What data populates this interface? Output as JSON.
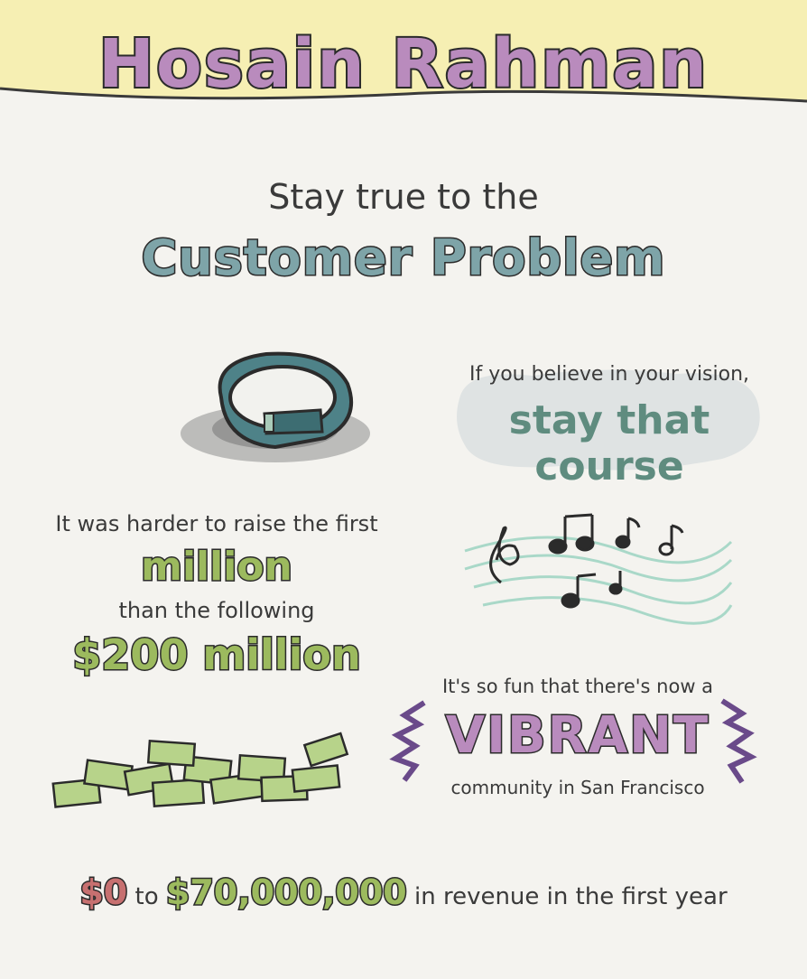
{
  "title": "Hosain Rahman",
  "quote_customer": {
    "line1": "Stay true to the",
    "line2": "Customer Problem"
  },
  "quote_vision": {
    "line1": "If you believe in your vision,",
    "line2": "stay that course"
  },
  "quote_raise": {
    "line1": "It was harder to raise the first",
    "line2": "million",
    "line3": "than the following",
    "line4": "$200 million"
  },
  "quote_community": {
    "line1": "It's so fun that there's now a",
    "line2": "VIBRANT",
    "line3": "community in San Francisco"
  },
  "revenue": {
    "from": "$0",
    "to_word": "to",
    "amount": "$70,000,000",
    "suffix": "in revenue in the first year"
  },
  "colors": {
    "title_fill": "#b98bbd",
    "header_band": "#f6efb3",
    "teal": "#7ea4a8",
    "green": "#9cba5e",
    "red": "#c77070"
  },
  "icons": [
    "wristband-icon",
    "music-notes-icon",
    "money-pile-icon"
  ]
}
